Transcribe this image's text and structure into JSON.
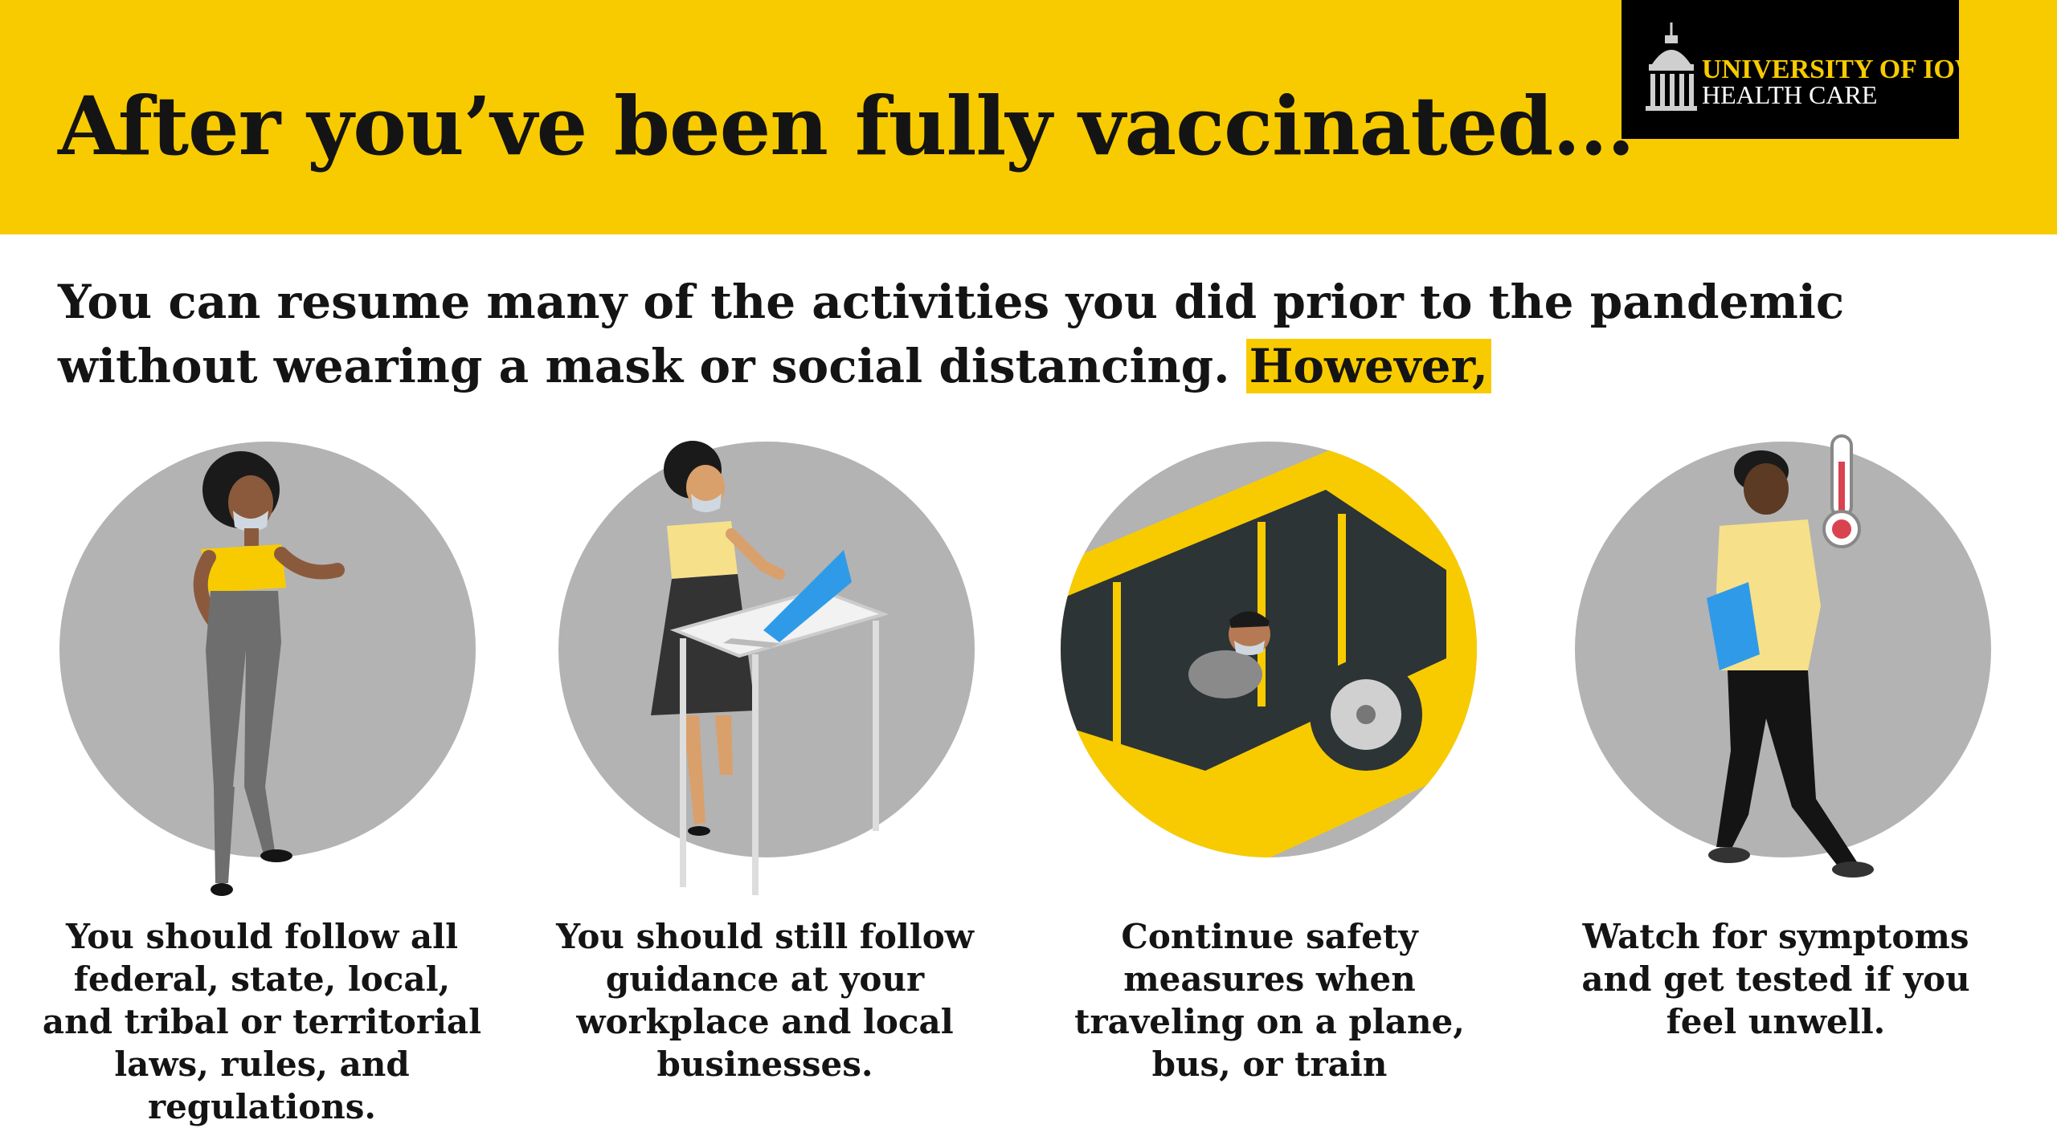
{
  "header": {
    "title": "After you’ve been fully vaccinated...",
    "background_color": "#F8CB00"
  },
  "logo": {
    "line1": "UNIVERSITY OF IOWA",
    "line2": "HEALTH CARE",
    "icon": "old-capitol-dome-icon"
  },
  "intro": {
    "line1": "You can resume many of the activities you did prior to the pandemic",
    "line2": "without wearing a mask or social distancing.",
    "highlight": "However,"
  },
  "panels": [
    {
      "icon": "woman-wearing-mask-illustration",
      "caption": "You should follow all federal, state, local, and tribal or territorial laws, rules, and regulations."
    },
    {
      "icon": "woman-at-laptop-desk-illustration",
      "caption": "You should still follow guidance at your workplace and local businesses."
    },
    {
      "icon": "passenger-in-bus-illustration",
      "caption": "Continue safety measures when traveling on a plane, bus, or train"
    },
    {
      "icon": "man-with-thermometer-illustration",
      "caption": "Watch for symptoms and get tested if you feel unwell."
    }
  ],
  "colors": {
    "accent": "#F8CB00",
    "circle": "#B3B3B3",
    "text": "#141414",
    "logo_bg": "#000000"
  }
}
